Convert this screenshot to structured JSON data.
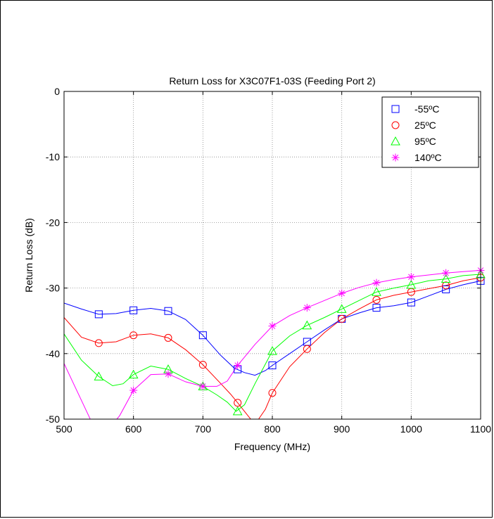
{
  "chart_data": {
    "type": "line",
    "title": "Return Loss for X3C07F1-03S (Feeding Port 2)",
    "xlabel": "Frequency (MHz)",
    "ylabel": "Return Loss (dB)",
    "xlim": [
      500,
      1100
    ],
    "ylim": [
      -50,
      0
    ],
    "xticks": [
      500,
      600,
      700,
      800,
      900,
      1000,
      1100
    ],
    "yticks": [
      0,
      -10,
      -20,
      -30,
      -40,
      -50
    ],
    "grid": true,
    "legend_position": "top-right",
    "series": [
      {
        "name": "-55ºC",
        "color": "#0000ff",
        "marker": "square",
        "line": [
          [
            500,
            -32.3
          ],
          [
            525,
            -33.2
          ],
          [
            550,
            -34.0
          ],
          [
            575,
            -33.9
          ],
          [
            600,
            -33.4
          ],
          [
            625,
            -33.1
          ],
          [
            650,
            -33.5
          ],
          [
            675,
            -34.8
          ],
          [
            700,
            -37.2
          ],
          [
            725,
            -40.2
          ],
          [
            745,
            -42.2
          ],
          [
            760,
            -42.9
          ],
          [
            775,
            -43.3
          ],
          [
            790,
            -42.6
          ],
          [
            800,
            -41.8
          ],
          [
            825,
            -40.0
          ],
          [
            850,
            -38.2
          ],
          [
            875,
            -36.4
          ],
          [
            900,
            -34.7
          ],
          [
            925,
            -33.8
          ],
          [
            950,
            -33.0
          ],
          [
            975,
            -32.7
          ],
          [
            1000,
            -32.2
          ],
          [
            1025,
            -31.2
          ],
          [
            1050,
            -30.2
          ],
          [
            1075,
            -29.5
          ],
          [
            1100,
            -28.9
          ]
        ],
        "markers": [
          [
            550,
            -34.0
          ],
          [
            600,
            -33.4
          ],
          [
            650,
            -33.5
          ],
          [
            700,
            -37.2
          ],
          [
            750,
            -42.4
          ],
          [
            800,
            -41.8
          ],
          [
            850,
            -38.2
          ],
          [
            900,
            -34.7
          ],
          [
            950,
            -33.0
          ],
          [
            1000,
            -32.2
          ],
          [
            1050,
            -30.2
          ],
          [
            1100,
            -28.9
          ]
        ]
      },
      {
        "name": "25ºC",
        "color": "#ff0000",
        "marker": "circle",
        "line": [
          [
            500,
            -34.5
          ],
          [
            525,
            -37.5
          ],
          [
            550,
            -38.4
          ],
          [
            575,
            -38.2
          ],
          [
            600,
            -37.2
          ],
          [
            625,
            -37.0
          ],
          [
            650,
            -37.6
          ],
          [
            675,
            -39.4
          ],
          [
            700,
            -41.7
          ],
          [
            725,
            -44.5
          ],
          [
            740,
            -46.2
          ],
          [
            750,
            -47.5
          ],
          [
            765,
            -49.5
          ],
          [
            775,
            -50.8
          ],
          [
            790,
            -48.5
          ],
          [
            800,
            -46.0
          ],
          [
            825,
            -42.0
          ],
          [
            850,
            -39.3
          ],
          [
            875,
            -36.8
          ],
          [
            900,
            -34.7
          ],
          [
            925,
            -33.2
          ],
          [
            950,
            -31.8
          ],
          [
            975,
            -31.1
          ],
          [
            1000,
            -30.6
          ],
          [
            1025,
            -30.1
          ],
          [
            1050,
            -29.6
          ],
          [
            1075,
            -28.9
          ],
          [
            1100,
            -28.4
          ]
        ],
        "markers": [
          [
            550,
            -38.4
          ],
          [
            600,
            -37.2
          ],
          [
            650,
            -37.6
          ],
          [
            700,
            -41.7
          ],
          [
            750,
            -47.5
          ],
          [
            800,
            -46.0
          ],
          [
            850,
            -39.3
          ],
          [
            900,
            -34.7
          ],
          [
            950,
            -31.8
          ],
          [
            1000,
            -30.6
          ],
          [
            1050,
            -29.6
          ],
          [
            1100,
            -28.4
          ]
        ]
      },
      {
        "name": "95ºC",
        "color": "#00ff00",
        "marker": "triangle",
        "line": [
          [
            500,
            -37.0
          ],
          [
            525,
            -41.0
          ],
          [
            550,
            -43.5
          ],
          [
            570,
            -44.9
          ],
          [
            585,
            -44.6
          ],
          [
            600,
            -43.2
          ],
          [
            625,
            -41.9
          ],
          [
            650,
            -42.4
          ],
          [
            675,
            -43.8
          ],
          [
            700,
            -45.0
          ],
          [
            720,
            -46.3
          ],
          [
            735,
            -47.4
          ],
          [
            748,
            -48.8
          ],
          [
            760,
            -47.8
          ],
          [
            775,
            -44.6
          ],
          [
            800,
            -39.6
          ],
          [
            825,
            -37.3
          ],
          [
            850,
            -35.7
          ],
          [
            875,
            -34.5
          ],
          [
            900,
            -33.2
          ],
          [
            925,
            -31.9
          ],
          [
            950,
            -30.6
          ],
          [
            975,
            -30.0
          ],
          [
            1000,
            -29.5
          ],
          [
            1025,
            -28.9
          ],
          [
            1050,
            -28.6
          ],
          [
            1075,
            -28.1
          ],
          [
            1100,
            -27.9
          ]
        ],
        "markers": [
          [
            550,
            -43.5
          ],
          [
            600,
            -43.2
          ],
          [
            650,
            -42.4
          ],
          [
            700,
            -45.0
          ],
          [
            750,
            -48.8
          ],
          [
            800,
            -39.6
          ],
          [
            850,
            -35.7
          ],
          [
            900,
            -33.2
          ],
          [
            950,
            -30.6
          ],
          [
            1000,
            -29.5
          ],
          [
            1050,
            -28.6
          ],
          [
            1100,
            -27.9
          ]
        ]
      },
      {
        "name": "140ºC",
        "color": "#ff00ff",
        "marker": "star",
        "line": [
          [
            500,
            -41.5
          ],
          [
            520,
            -46.0
          ],
          [
            540,
            -50.5
          ],
          [
            560,
            -52.0
          ],
          [
            580,
            -49.5
          ],
          [
            600,
            -45.6
          ],
          [
            625,
            -43.2
          ],
          [
            650,
            -43.1
          ],
          [
            675,
            -44.3
          ],
          [
            700,
            -45.0
          ],
          [
            720,
            -45.0
          ],
          [
            735,
            -44.2
          ],
          [
            750,
            -41.8
          ],
          [
            775,
            -38.6
          ],
          [
            800,
            -35.8
          ],
          [
            825,
            -34.2
          ],
          [
            850,
            -33.0
          ],
          [
            875,
            -31.9
          ],
          [
            900,
            -30.8
          ],
          [
            925,
            -29.9
          ],
          [
            950,
            -29.2
          ],
          [
            975,
            -28.7
          ],
          [
            1000,
            -28.3
          ],
          [
            1025,
            -28.0
          ],
          [
            1050,
            -27.7
          ],
          [
            1075,
            -27.5
          ],
          [
            1100,
            -27.3
          ]
        ],
        "markers": [
          [
            600,
            -45.6
          ],
          [
            650,
            -43.1
          ],
          [
            700,
            -45.0
          ],
          [
            750,
            -41.8
          ],
          [
            800,
            -35.8
          ],
          [
            850,
            -33.0
          ],
          [
            900,
            -30.8
          ],
          [
            950,
            -29.2
          ],
          [
            1000,
            -28.3
          ],
          [
            1050,
            -27.7
          ],
          [
            1100,
            -27.3
          ]
        ]
      }
    ]
  }
}
